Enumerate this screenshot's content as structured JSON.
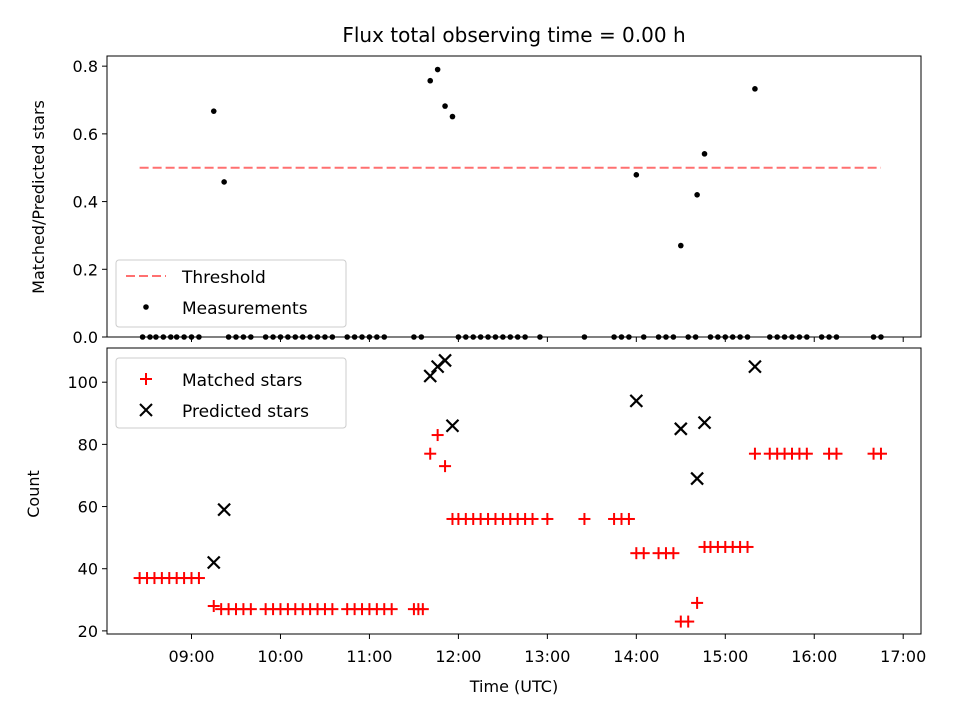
{
  "chart_data": [
    {
      "type": "scatter",
      "title": "Flux total observing time = 0.00 h",
      "xlabel": "",
      "ylabel": "Matched/Predicted stars",
      "xlim": [
        "08:03",
        "17:12"
      ],
      "ylim": [
        0,
        0.83
      ],
      "yticks": [
        0.0,
        0.2,
        0.4,
        0.6,
        0.8
      ],
      "ytick_labels": [
        "0.0",
        "0.2",
        "0.4",
        "0.6",
        "0.8"
      ],
      "legend": {
        "placement": "lower-left",
        "entries": [
          "Threshold",
          "Measurements"
        ]
      },
      "threshold": {
        "name": "Threshold",
        "x": [
          "08:25",
          "16:45"
        ],
        "y": 0.5,
        "color": "#ff7070",
        "style": "dashed"
      },
      "series": [
        {
          "name": "Measurements",
          "marker": "dot",
          "color": "#000000",
          "points": [
            {
              "x": "08:27",
              "y": 0.0
            },
            {
              "x": "08:32",
              "y": 0.0
            },
            {
              "x": "08:36",
              "y": 0.0
            },
            {
              "x": "08:41",
              "y": 0.0
            },
            {
              "x": "08:46",
              "y": 0.0
            },
            {
              "x": "08:50",
              "y": 0.0
            },
            {
              "x": "08:55",
              "y": 0.0
            },
            {
              "x": "09:00",
              "y": 0.0
            },
            {
              "x": "09:05",
              "y": 0.0
            },
            {
              "x": "09:15",
              "y": 0.667
            },
            {
              "x": "09:22",
              "y": 0.458
            },
            {
              "x": "09:25",
              "y": 0.0
            },
            {
              "x": "09:30",
              "y": 0.0
            },
            {
              "x": "09:35",
              "y": 0.0
            },
            {
              "x": "09:40",
              "y": 0.0
            },
            {
              "x": "09:50",
              "y": 0.0
            },
            {
              "x": "09:55",
              "y": 0.0
            },
            {
              "x": "10:00",
              "y": 0.0
            },
            {
              "x": "10:05",
              "y": 0.0
            },
            {
              "x": "10:10",
              "y": 0.0
            },
            {
              "x": "10:15",
              "y": 0.0
            },
            {
              "x": "10:20",
              "y": 0.0
            },
            {
              "x": "10:25",
              "y": 0.0
            },
            {
              "x": "10:30",
              "y": 0.0
            },
            {
              "x": "10:35",
              "y": 0.0
            },
            {
              "x": "10:45",
              "y": 0.0
            },
            {
              "x": "10:50",
              "y": 0.0
            },
            {
              "x": "10:55",
              "y": 0.0
            },
            {
              "x": "11:00",
              "y": 0.0
            },
            {
              "x": "11:05",
              "y": 0.0
            },
            {
              "x": "11:10",
              "y": 0.0
            },
            {
              "x": "11:30",
              "y": 0.0
            },
            {
              "x": "11:35",
              "y": 0.0
            },
            {
              "x": "11:41",
              "y": 0.757
            },
            {
              "x": "11:46",
              "y": 0.79
            },
            {
              "x": "11:51",
              "y": 0.682
            },
            {
              "x": "11:56",
              "y": 0.651
            },
            {
              "x": "12:00",
              "y": 0.0
            },
            {
              "x": "12:05",
              "y": 0.0
            },
            {
              "x": "12:10",
              "y": 0.0
            },
            {
              "x": "12:15",
              "y": 0.0
            },
            {
              "x": "12:20",
              "y": 0.0
            },
            {
              "x": "12:25",
              "y": 0.0
            },
            {
              "x": "12:30",
              "y": 0.0
            },
            {
              "x": "12:35",
              "y": 0.0
            },
            {
              "x": "12:40",
              "y": 0.0
            },
            {
              "x": "12:45",
              "y": 0.0
            },
            {
              "x": "12:55",
              "y": 0.0
            },
            {
              "x": "13:25",
              "y": 0.0
            },
            {
              "x": "13:45",
              "y": 0.0
            },
            {
              "x": "13:50",
              "y": 0.0
            },
            {
              "x": "13:55",
              "y": 0.0
            },
            {
              "x": "14:00",
              "y": 0.479
            },
            {
              "x": "14:05",
              "y": 0.0
            },
            {
              "x": "14:15",
              "y": 0.0
            },
            {
              "x": "14:20",
              "y": 0.0
            },
            {
              "x": "14:25",
              "y": 0.0
            },
            {
              "x": "14:30",
              "y": 0.27
            },
            {
              "x": "14:35",
              "y": 0.0
            },
            {
              "x": "14:40",
              "y": 0.0
            },
            {
              "x": "14:41",
              "y": 0.42
            },
            {
              "x": "14:46",
              "y": 0.541
            },
            {
              "x": "14:50",
              "y": 0.0
            },
            {
              "x": "14:55",
              "y": 0.0
            },
            {
              "x": "15:00",
              "y": 0.0
            },
            {
              "x": "15:05",
              "y": 0.0
            },
            {
              "x": "15:10",
              "y": 0.0
            },
            {
              "x": "15:15",
              "y": 0.0
            },
            {
              "x": "15:20",
              "y": 0.733
            },
            {
              "x": "15:30",
              "y": 0.0
            },
            {
              "x": "15:35",
              "y": 0.0
            },
            {
              "x": "15:40",
              "y": 0.0
            },
            {
              "x": "15:45",
              "y": 0.0
            },
            {
              "x": "15:50",
              "y": 0.0
            },
            {
              "x": "15:55",
              "y": 0.0
            },
            {
              "x": "16:05",
              "y": 0.0
            },
            {
              "x": "16:10",
              "y": 0.0
            },
            {
              "x": "16:15",
              "y": 0.0
            },
            {
              "x": "16:40",
              "y": 0.0
            },
            {
              "x": "16:45",
              "y": 0.0
            }
          ]
        }
      ]
    },
    {
      "type": "scatter",
      "title": "",
      "xlabel": "Time (UTC)",
      "ylabel": "Count",
      "xlim": [
        "08:03",
        "17:12"
      ],
      "ylim": [
        19,
        111
      ],
      "yticks": [
        20,
        40,
        60,
        80,
        100
      ],
      "ytick_labels": [
        "20",
        "40",
        "60",
        "80",
        "100"
      ],
      "xticks": [
        "09:00",
        "10:00",
        "11:00",
        "12:00",
        "13:00",
        "14:00",
        "15:00",
        "16:00",
        "17:00"
      ],
      "xtick_labels": [
        "09:00",
        "10:00",
        "11:00",
        "12:00",
        "13:00",
        "14:00",
        "15:00",
        "16:00",
        "17:00"
      ],
      "legend": {
        "placement": "upper-left",
        "entries": [
          "Matched stars",
          "Predicted stars"
        ]
      },
      "series": [
        {
          "name": "Matched stars",
          "marker": "plus",
          "color": "#ff0000",
          "points": [
            {
              "x": "08:25",
              "y": 37
            },
            {
              "x": "08:30",
              "y": 37
            },
            {
              "x": "08:35",
              "y": 37
            },
            {
              "x": "08:40",
              "y": 37
            },
            {
              "x": "08:45",
              "y": 37
            },
            {
              "x": "08:50",
              "y": 37
            },
            {
              "x": "08:55",
              "y": 37
            },
            {
              "x": "09:00",
              "y": 37
            },
            {
              "x": "09:05",
              "y": 37
            },
            {
              "x": "09:15",
              "y": 28
            },
            {
              "x": "09:20",
              "y": 27
            },
            {
              "x": "09:25",
              "y": 27
            },
            {
              "x": "09:30",
              "y": 27
            },
            {
              "x": "09:35",
              "y": 27
            },
            {
              "x": "09:40",
              "y": 27
            },
            {
              "x": "09:50",
              "y": 27
            },
            {
              "x": "09:55",
              "y": 27
            },
            {
              "x": "10:00",
              "y": 27
            },
            {
              "x": "10:05",
              "y": 27
            },
            {
              "x": "10:10",
              "y": 27
            },
            {
              "x": "10:15",
              "y": 27
            },
            {
              "x": "10:20",
              "y": 27
            },
            {
              "x": "10:25",
              "y": 27
            },
            {
              "x": "10:30",
              "y": 27
            },
            {
              "x": "10:35",
              "y": 27
            },
            {
              "x": "10:45",
              "y": 27
            },
            {
              "x": "10:50",
              "y": 27
            },
            {
              "x": "10:55",
              "y": 27
            },
            {
              "x": "11:00",
              "y": 27
            },
            {
              "x": "11:05",
              "y": 27
            },
            {
              "x": "11:10",
              "y": 27
            },
            {
              "x": "11:15",
              "y": 27
            },
            {
              "x": "11:30",
              "y": 27
            },
            {
              "x": "11:33",
              "y": 27
            },
            {
              "x": "11:36",
              "y": 27
            },
            {
              "x": "11:41",
              "y": 77
            },
            {
              "x": "11:46",
              "y": 83
            },
            {
              "x": "11:51",
              "y": 73
            },
            {
              "x": "11:56",
              "y": 56
            },
            {
              "x": "12:00",
              "y": 56
            },
            {
              "x": "12:05",
              "y": 56
            },
            {
              "x": "12:10",
              "y": 56
            },
            {
              "x": "12:15",
              "y": 56
            },
            {
              "x": "12:20",
              "y": 56
            },
            {
              "x": "12:25",
              "y": 56
            },
            {
              "x": "12:30",
              "y": 56
            },
            {
              "x": "12:35",
              "y": 56
            },
            {
              "x": "12:40",
              "y": 56
            },
            {
              "x": "12:45",
              "y": 56
            },
            {
              "x": "12:50",
              "y": 56
            },
            {
              "x": "13:00",
              "y": 56
            },
            {
              "x": "13:25",
              "y": 56
            },
            {
              "x": "13:45",
              "y": 56
            },
            {
              "x": "13:50",
              "y": 56
            },
            {
              "x": "13:55",
              "y": 56
            },
            {
              "x": "14:00",
              "y": 45
            },
            {
              "x": "14:05",
              "y": 45
            },
            {
              "x": "14:15",
              "y": 45
            },
            {
              "x": "14:20",
              "y": 45
            },
            {
              "x": "14:25",
              "y": 45
            },
            {
              "x": "14:30",
              "y": 23
            },
            {
              "x": "14:35",
              "y": 23
            },
            {
              "x": "14:41",
              "y": 29
            },
            {
              "x": "14:46",
              "y": 47
            },
            {
              "x": "14:50",
              "y": 47
            },
            {
              "x": "14:55",
              "y": 47
            },
            {
              "x": "15:00",
              "y": 47
            },
            {
              "x": "15:05",
              "y": 47
            },
            {
              "x": "15:10",
              "y": 47
            },
            {
              "x": "15:15",
              "y": 47
            },
            {
              "x": "15:20",
              "y": 77
            },
            {
              "x": "15:30",
              "y": 77
            },
            {
              "x": "15:35",
              "y": 77
            },
            {
              "x": "15:40",
              "y": 77
            },
            {
              "x": "15:45",
              "y": 77
            },
            {
              "x": "15:50",
              "y": 77
            },
            {
              "x": "15:55",
              "y": 77
            },
            {
              "x": "16:10",
              "y": 77
            },
            {
              "x": "16:15",
              "y": 77
            },
            {
              "x": "16:40",
              "y": 77
            },
            {
              "x": "16:45",
              "y": 77
            }
          ]
        },
        {
          "name": "Predicted stars",
          "marker": "x",
          "color": "#000000",
          "points": [
            {
              "x": "09:15",
              "y": 42
            },
            {
              "x": "09:22",
              "y": 59
            },
            {
              "x": "11:41",
              "y": 102
            },
            {
              "x": "11:46",
              "y": 105
            },
            {
              "x": "11:51",
              "y": 107
            },
            {
              "x": "11:56",
              "y": 86
            },
            {
              "x": "14:00",
              "y": 94
            },
            {
              "x": "14:30",
              "y": 85
            },
            {
              "x": "14:41",
              "y": 69
            },
            {
              "x": "14:46",
              "y": 87
            },
            {
              "x": "15:20",
              "y": 105
            }
          ]
        }
      ]
    }
  ]
}
